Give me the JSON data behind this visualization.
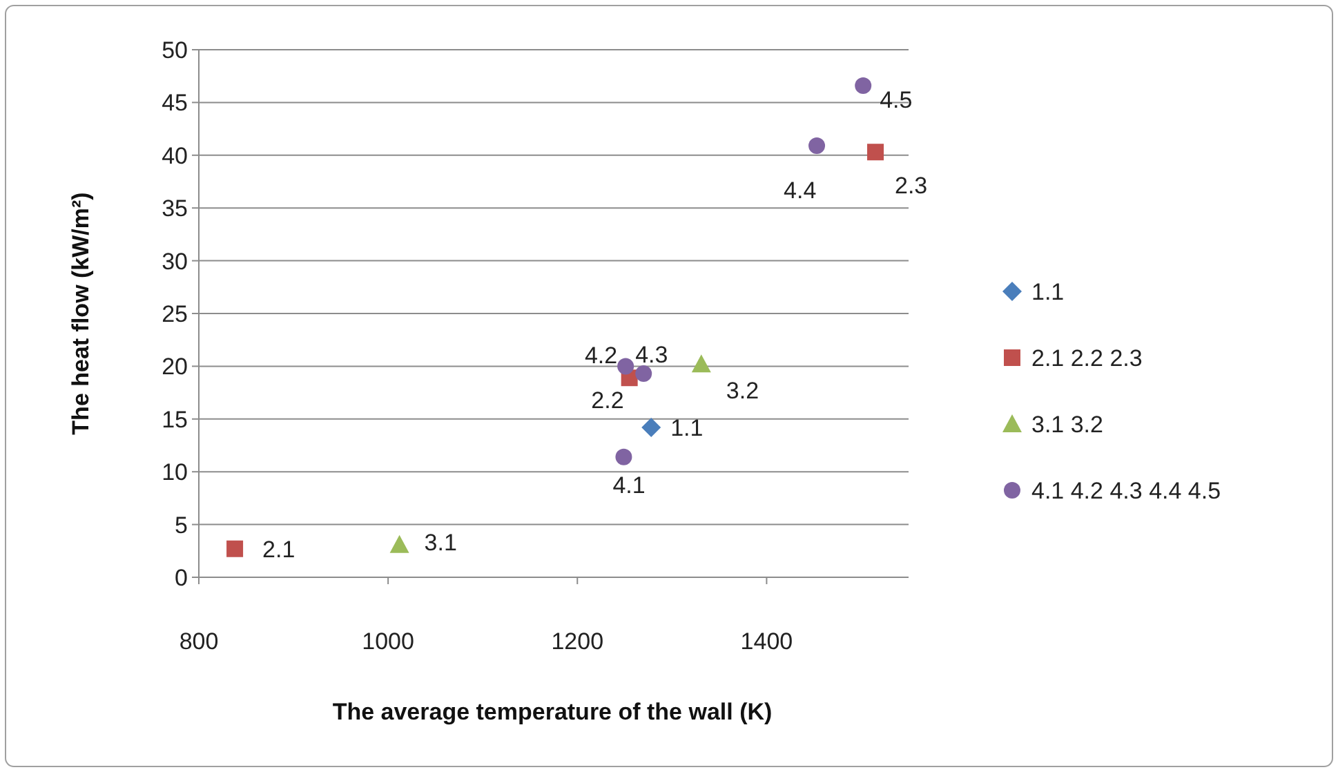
{
  "chart_data": {
    "type": "scatter",
    "xlabel": "The average temperature of the wall (K)",
    "ylabel": "The heat flow (kW/m²)",
    "xlim": [
      800,
      1550
    ],
    "xticks": [
      800,
      1000,
      1200,
      1400
    ],
    "ylim": [
      0,
      50
    ],
    "yticks": [
      0,
      5,
      10,
      15,
      20,
      25,
      30,
      35,
      40,
      45,
      50
    ],
    "grid": "y",
    "legend": "right",
    "series": [
      {
        "name": "1.1",
        "color": "#4a7ebb",
        "marker": "diamond",
        "x": [
          1278
        ],
        "values": [
          14.2
        ]
      },
      {
        "name": "2.1 2.2 2.3",
        "color": "#c0504d",
        "marker": "square",
        "x": [
          838,
          1255,
          1515
        ],
        "values": [
          2.7,
          18.9,
          40.3
        ]
      },
      {
        "name": "3.1 3.2",
        "color": "#9bbb59",
        "marker": "triangle",
        "x": [
          1012,
          1331
        ],
        "values": [
          3.1,
          20.2
        ]
      },
      {
        "name": "4.1 4.2 4.3 4.4 4.5",
        "color": "#8064a2",
        "marker": "circle",
        "x": [
          1249,
          1251,
          1270,
          1453,
          1502
        ],
        "values": [
          11.4,
          20.0,
          19.3,
          40.9,
          46.6
        ]
      }
    ],
    "annotations": [
      {
        "text": "1.1",
        "x": 1278,
        "y": 14.2
      },
      {
        "text": "2.1",
        "x": 838,
        "y": 2.7
      },
      {
        "text": "2.2",
        "x": 1255,
        "y": 18.9
      },
      {
        "text": "2.3",
        "x": 1515,
        "y": 40.3
      },
      {
        "text": "3.1",
        "x": 1012,
        "y": 3.1
      },
      {
        "text": "3.2",
        "x": 1331,
        "y": 20.2
      },
      {
        "text": "4.1",
        "x": 1249,
        "y": 11.4
      },
      {
        "text": "4.2",
        "x": 1251,
        "y": 20.0
      },
      {
        "text": "4.3",
        "x": 1270,
        "y": 19.3
      },
      {
        "text": "4.4",
        "x": 1453,
        "y": 40.9
      },
      {
        "text": "4.5",
        "x": 1502,
        "y": 46.6
      }
    ]
  }
}
